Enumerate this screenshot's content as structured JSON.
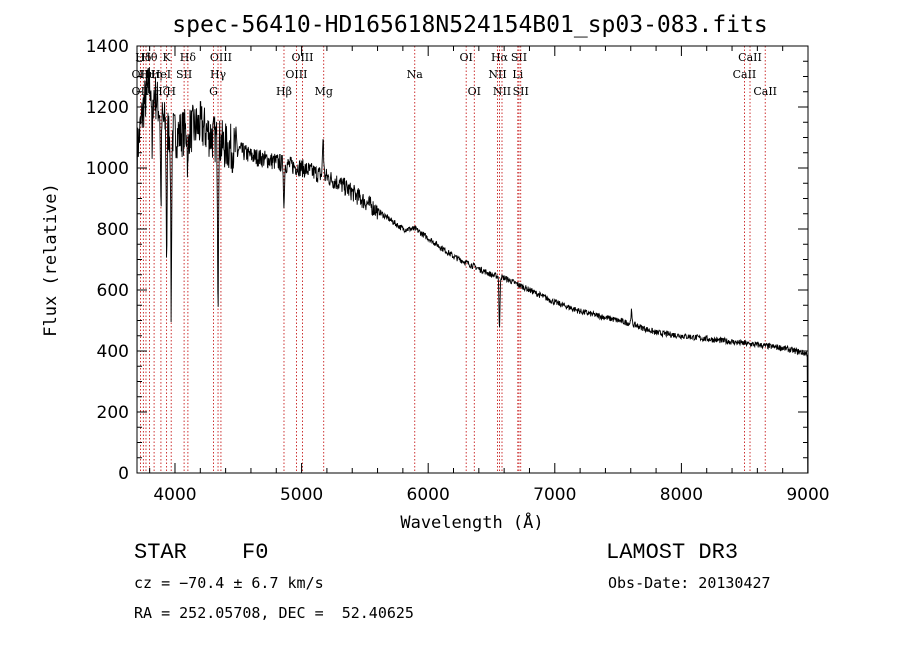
{
  "chart_data": {
    "type": "line",
    "title": "spec-56410-HD165618N524154B01_sp03-083.fits",
    "xlabel": "Wavelength (Å)",
    "ylabel": "Flux (relative)",
    "xlim": [
      3700,
      9000
    ],
    "ylim": [
      0,
      1400
    ],
    "x_ticks": [
      4000,
      5000,
      6000,
      7000,
      8000,
      9000
    ],
    "y_ticks": [
      0,
      200,
      400,
      600,
      800,
      1000,
      1200,
      1400
    ],
    "series": [
      {
        "name": "spectrum",
        "continuum_x": [
          3700,
          3750,
          3800,
          3850,
          3900,
          3950,
          4000,
          4100,
          4200,
          4300,
          4400,
          4500,
          4600,
          4700,
          4800,
          4900,
          5000,
          5100,
          5200,
          5300,
          5400,
          5500,
          5600,
          5700,
          5800,
          5900,
          6000,
          6100,
          6200,
          6300,
          6400,
          6500,
          6600,
          6700,
          6800,
          6900,
          7000,
          7200,
          7400,
          7600,
          7800,
          8000,
          8200,
          8400,
          8600,
          8800,
          9000
        ],
        "continuum_y": [
          1050,
          1200,
          1280,
          1230,
          1160,
          1120,
          1110,
          1120,
          1140,
          1100,
          1070,
          1060,
          1040,
          1030,
          1020,
          1010,
          1000,
          985,
          970,
          950,
          920,
          890,
          860,
          830,
          800,
          800,
          770,
          740,
          710,
          690,
          670,
          650,
          640,
          620,
          600,
          580,
          560,
          530,
          510,
          490,
          460,
          450,
          440,
          430,
          420,
          410,
          390
        ],
        "absorption_lines": [
          {
            "x": 3820,
            "depth": 250
          },
          {
            "x": 3889,
            "depth": 300
          },
          {
            "x": 3934,
            "depth": 420
          },
          {
            "x": 3970,
            "depth": 600
          },
          {
            "x": 4102,
            "depth": 150
          },
          {
            "x": 4340,
            "depth": 500
          },
          {
            "x": 4861,
            "depth": 150
          },
          {
            "x": 6563,
            "depth": 180
          }
        ],
        "emission_features": [
          {
            "x": 5170,
            "height": 130
          },
          {
            "x": 7605,
            "height": 40
          }
        ]
      }
    ],
    "line_markers": [
      {
        "x": 3750,
        "label": "Hδ",
        "row": 0
      },
      {
        "x": 3727,
        "label": "OII",
        "row": 1
      },
      {
        "x": 3727,
        "label": "OII",
        "row": 2
      },
      {
        "x": 3798,
        "label": "Hθ",
        "row": 0
      },
      {
        "x": 3771,
        "label": "Hι",
        "row": 1
      },
      {
        "x": 3835,
        "label": "Hη",
        "row": 1
      },
      {
        "x": 3889,
        "label": "Hζ",
        "row": 2
      },
      {
        "x": 3934,
        "label": "K",
        "row": 0
      },
      {
        "x": 3889,
        "label": "HeI",
        "row": 1
      },
      {
        "x": 3970,
        "label": "H",
        "row": 2
      },
      {
        "x": 4102,
        "label": "Hδ",
        "row": 0
      },
      {
        "x": 4072,
        "label": "SII",
        "row": 1
      },
      {
        "x": 4363,
        "label": "OIII",
        "row": 0
      },
      {
        "x": 4340,
        "label": "Hγ",
        "row": 1
      },
      {
        "x": 4304,
        "label": "G",
        "row": 2
      },
      {
        "x": 5007,
        "label": "OIII",
        "row": 0
      },
      {
        "x": 4959,
        "label": "OIII",
        "row": 1
      },
      {
        "x": 4861,
        "label": "Hβ",
        "row": 2
      },
      {
        "x": 5175,
        "label": "Mg",
        "row": 2
      },
      {
        "x": 5894,
        "label": "Na",
        "row": 1
      },
      {
        "x": 6300,
        "label": "OI",
        "row": 0
      },
      {
        "x": 6364,
        "label": "OI",
        "row": 2
      },
      {
        "x": 6563,
        "label": "Hα",
        "row": 0
      },
      {
        "x": 6548,
        "label": "NII",
        "row": 1
      },
      {
        "x": 6583,
        "label": "NII",
        "row": 2
      },
      {
        "x": 6717,
        "label": "SII",
        "row": 0
      },
      {
        "x": 6708,
        "label": "Li",
        "row": 1
      },
      {
        "x": 6731,
        "label": "SII",
        "row": 2
      },
      {
        "x": 8542,
        "label": "CaII",
        "row": 0
      },
      {
        "x": 8498,
        "label": "CaII",
        "row": 1
      },
      {
        "x": 8662,
        "label": "CaII",
        "row": 2
      }
    ]
  },
  "info": {
    "class": "STAR",
    "subclass": "F0",
    "survey": "LAMOST DR3",
    "cz": "cz = −70.4 ± 6.7 km/s",
    "obs_date": "Obs-Date: 20130427",
    "coords": "RA = 252.05708, DEC =  52.40625"
  },
  "colors": {
    "marker": "#c00000",
    "spectrum": "#000000"
  }
}
